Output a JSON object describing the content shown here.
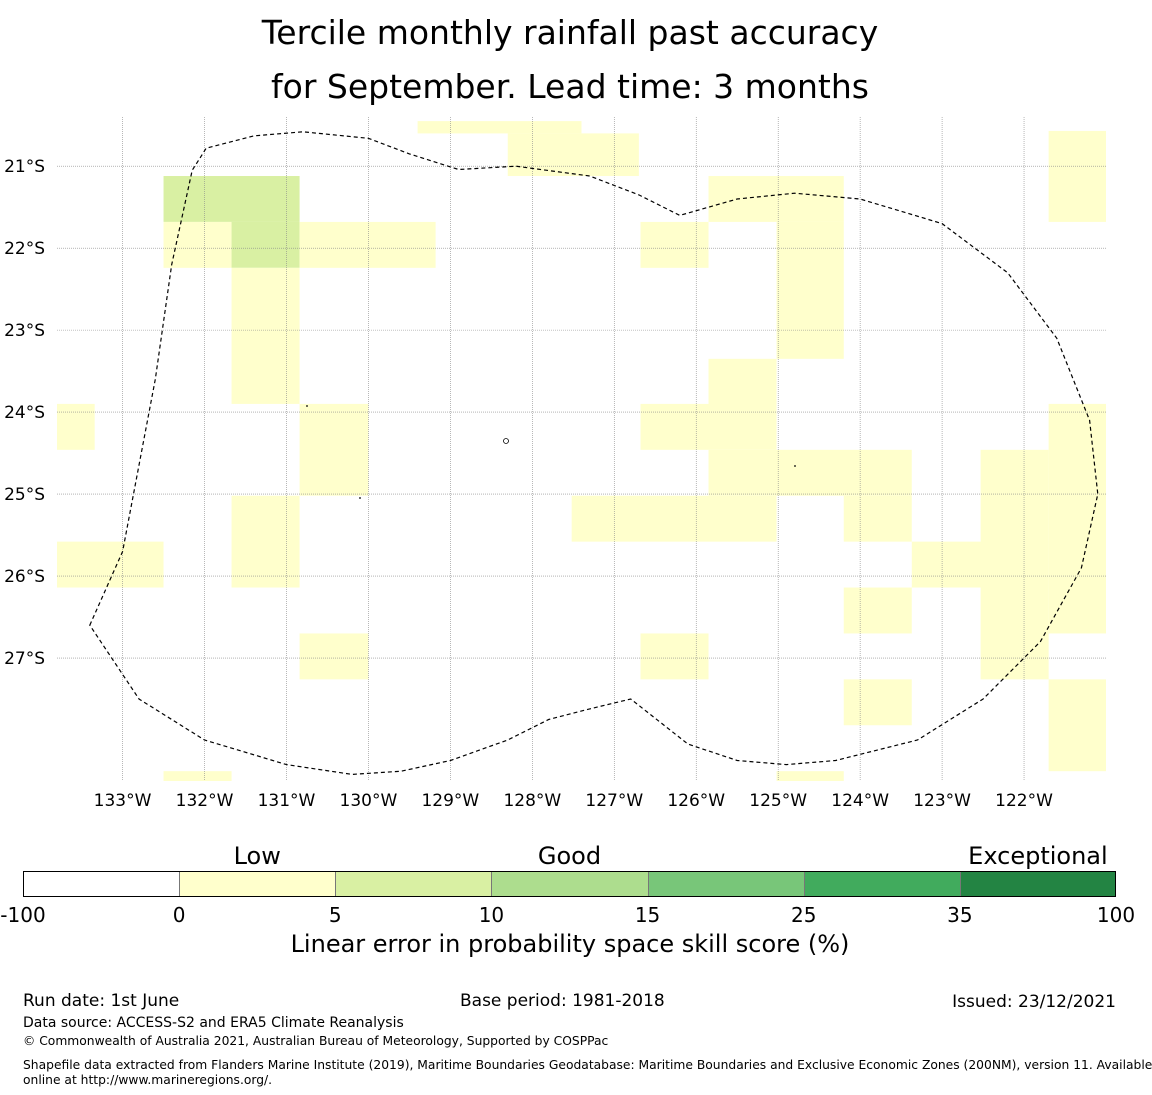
{
  "title": {
    "line1": "Tercile monthly rainfall past accuracy",
    "line2": "for September. Lead time: 3 months"
  },
  "map": {
    "lon_ticks": [
      {
        "value": -133,
        "label": "133°W"
      },
      {
        "value": -132,
        "label": "132°W"
      },
      {
        "value": -131,
        "label": "131°W"
      },
      {
        "value": -130,
        "label": "130°W"
      },
      {
        "value": -129,
        "label": "129°W"
      },
      {
        "value": -128,
        "label": "128°W"
      },
      {
        "value": -127,
        "label": "127°W"
      },
      {
        "value": -126,
        "label": "126°W"
      },
      {
        "value": -125,
        "label": "125°W"
      },
      {
        "value": -124,
        "label": "124°W"
      },
      {
        "value": -123,
        "label": "123°W"
      },
      {
        "value": -122,
        "label": "122°W"
      }
    ],
    "lat_ticks": [
      {
        "value": -21,
        "label": "21°S"
      },
      {
        "value": -22,
        "label": "22°S"
      },
      {
        "value": -23,
        "label": "23°S"
      },
      {
        "value": -24,
        "label": "24°S"
      },
      {
        "value": -25,
        "label": "25°S"
      },
      {
        "value": -26,
        "label": "26°S"
      },
      {
        "value": -27,
        "label": "27°S"
      }
    ],
    "extent": {
      "lon_min": -133.8,
      "lon_max": -121.0,
      "lat_min": -28.5,
      "lat_max": -20.4
    },
    "grid_cells": [
      {
        "lon0": -129.4,
        "lon1": -127.4,
        "lat0": -20.6,
        "lat1": -20.45,
        "level": 1
      },
      {
        "lon0": -128.3,
        "lon1": -126.7,
        "lat0": -20.6,
        "lat1": -21.12,
        "level": 1
      },
      {
        "lon0": -132.5,
        "lon1": -130.84,
        "lat0": -21.12,
        "lat1": -21.68,
        "level": 2
      },
      {
        "lon0": -132.5,
        "lon1": -131.67,
        "lat0": -21.68,
        "lat1": -22.24,
        "level": 1
      },
      {
        "lon0": -131.67,
        "lon1": -130.84,
        "lat0": -21.68,
        "lat1": -22.24,
        "level": 2
      },
      {
        "lon0": -130.84,
        "lon1": -129.18,
        "lat0": -21.68,
        "lat1": -22.24,
        "level": 1
      },
      {
        "lon0": -131.67,
        "lon1": -130.84,
        "lat0": -22.24,
        "lat1": -23.9,
        "level": 1
      },
      {
        "lon0": -133.8,
        "lon1": -133.34,
        "lat0": -23.9,
        "lat1": -24.46,
        "level": 1
      },
      {
        "lon0": -130.84,
        "lon1": -130.0,
        "lat0": -23.9,
        "lat1": -25.02,
        "level": 1
      },
      {
        "lon0": -131.67,
        "lon1": -130.84,
        "lat0": -25.02,
        "lat1": -26.14,
        "level": 1
      },
      {
        "lon0": -133.8,
        "lon1": -132.5,
        "lat0": -25.58,
        "lat1": -26.14,
        "level": 1
      },
      {
        "lon0": -130.84,
        "lon1": -130.0,
        "lat0": -26.7,
        "lat1": -27.26,
        "level": 1
      },
      {
        "lon0": -132.5,
        "lon1": -131.67,
        "lat0": -28.38,
        "lat1": -28.5,
        "level": 1
      },
      {
        "lon0": -125.85,
        "lon1": -124.2,
        "lat0": -21.12,
        "lat1": -21.68,
        "level": 1
      },
      {
        "lon0": -126.68,
        "lon1": -125.85,
        "lat0": -21.68,
        "lat1": -22.24,
        "level": 1
      },
      {
        "lon0": -125.02,
        "lon1": -124.2,
        "lat0": -21.68,
        "lat1": -23.35,
        "level": 1
      },
      {
        "lon0": -125.85,
        "lon1": -125.02,
        "lat0": -23.35,
        "lat1": -24.46,
        "level": 1
      },
      {
        "lon0": -126.68,
        "lon1": -125.85,
        "lat0": -23.9,
        "lat1": -24.46,
        "level": 1
      },
      {
        "lon0": -125.85,
        "lon1": -123.37,
        "lat0": -24.46,
        "lat1": -25.02,
        "level": 1
      },
      {
        "lon0": -127.52,
        "lon1": -125.02,
        "lat0": -25.02,
        "lat1": -25.58,
        "level": 1
      },
      {
        "lon0": -124.2,
        "lon1": -123.37,
        "lat0": -25.02,
        "lat1": -25.58,
        "level": 1
      },
      {
        "lon0": -123.37,
        "lon1": -121.7,
        "lat0": -25.58,
        "lat1": -26.14,
        "level": 1
      },
      {
        "lon0": -124.2,
        "lon1": -123.37,
        "lat0": -26.14,
        "lat1": -26.7,
        "level": 1
      },
      {
        "lon0": -122.53,
        "lon1": -121.7,
        "lat0": -24.46,
        "lat1": -27.26,
        "level": 1
      },
      {
        "lon0": -121.7,
        "lon1": -121.0,
        "lat0": -23.9,
        "lat1": -26.7,
        "level": 1
      },
      {
        "lon0": -121.7,
        "lon1": -121.0,
        "lat0": -20.57,
        "lat1": -21.68,
        "level": 1
      },
      {
        "lon0": -126.68,
        "lon1": -125.85,
        "lat0": -26.7,
        "lat1": -27.26,
        "level": 1
      },
      {
        "lon0": -124.2,
        "lon1": -123.37,
        "lat0": -27.26,
        "lat1": -27.82,
        "level": 1
      },
      {
        "lon0": -121.7,
        "lon1": -121.0,
        "lat0": -27.26,
        "lat1": -28.38,
        "level": 1
      },
      {
        "lon0": -125.02,
        "lon1": -124.2,
        "lat0": -28.38,
        "lat1": -28.5,
        "level": 1
      }
    ],
    "eez_boundary": [
      [
        -133.4,
        -26.6
      ],
      [
        -133.0,
        -25.7
      ],
      [
        -132.6,
        -23.6
      ],
      [
        -132.4,
        -22.2
      ],
      [
        -132.15,
        -21.05
      ],
      [
        -131.98,
        -20.78
      ],
      [
        -131.4,
        -20.63
      ],
      [
        -130.8,
        -20.58
      ],
      [
        -130.0,
        -20.66
      ],
      [
        -129.5,
        -20.85
      ],
      [
        -128.9,
        -21.04
      ],
      [
        -128.2,
        -21.0
      ],
      [
        -127.3,
        -21.12
      ],
      [
        -126.7,
        -21.35
      ],
      [
        -126.2,
        -21.6
      ],
      [
        -125.5,
        -21.4
      ],
      [
        -124.8,
        -21.33
      ],
      [
        -124.0,
        -21.4
      ],
      [
        -123.0,
        -21.7
      ],
      [
        -122.2,
        -22.3
      ],
      [
        -121.6,
        -23.1
      ],
      [
        -121.2,
        -24.1
      ],
      [
        -121.1,
        -25.0
      ],
      [
        -121.3,
        -25.9
      ],
      [
        -121.8,
        -26.8
      ],
      [
        -122.5,
        -27.5
      ],
      [
        -123.3,
        -28.0
      ],
      [
        -124.3,
        -28.25
      ],
      [
        -124.9,
        -28.3
      ],
      [
        -125.5,
        -28.25
      ],
      [
        -126.1,
        -28.05
      ],
      [
        -126.8,
        -27.5
      ],
      [
        -127.3,
        -27.62
      ],
      [
        -127.8,
        -27.75
      ],
      [
        -128.3,
        -28.0
      ],
      [
        -129.0,
        -28.25
      ],
      [
        -129.6,
        -28.38
      ],
      [
        -130.2,
        -28.42
      ],
      [
        -131.0,
        -28.3
      ],
      [
        -132.0,
        -28.0
      ],
      [
        -132.8,
        -27.5
      ],
      [
        -133.4,
        -26.6
      ]
    ]
  },
  "colorbar": {
    "categories": [
      {
        "label": "Low",
        "position": 1.5
      },
      {
        "label": "Good",
        "position": 3.5
      },
      {
        "label": "Exceptional",
        "position": 6.5
      }
    ],
    "bins": [
      {
        "from": -100,
        "to": 0,
        "color": "#ffffff"
      },
      {
        "from": 0,
        "to": 5,
        "color": "#ffffcc"
      },
      {
        "from": 5,
        "to": 10,
        "color": "#d9f0a3"
      },
      {
        "from": 10,
        "to": 15,
        "color": "#addd8e"
      },
      {
        "from": 15,
        "to": 25,
        "color": "#78c679"
      },
      {
        "from": 25,
        "to": 35,
        "color": "#41ab5d"
      },
      {
        "from": 35,
        "to": 100,
        "color": "#238443"
      }
    ],
    "ticks": [
      "-100",
      "0",
      "5",
      "10",
      "15",
      "25",
      "35",
      "100"
    ],
    "label": "Linear error in probability space skill score (%)"
  },
  "footer": {
    "run_date": "Run date: 1st June",
    "base_period": "Base period: 1981-2018",
    "issued": "Issued: 23/12/2021",
    "data_source": "Data source: ACCESS-S2 and ERA5 Climate Reanalysis",
    "copyright": "© Commonwealth of Australia 2021, Australian Bureau of Meteorology, Supported by COSPPac",
    "shapefile_line1": "Shapefile data extracted from Flanders Marine Institute (2019), Maritime Boundaries Geodatabase: Maritime Boundaries and Exclusive Economic Zones (200NM), version 11. Available",
    "shapefile_line2": "online at http://www.marineregions.org/."
  }
}
